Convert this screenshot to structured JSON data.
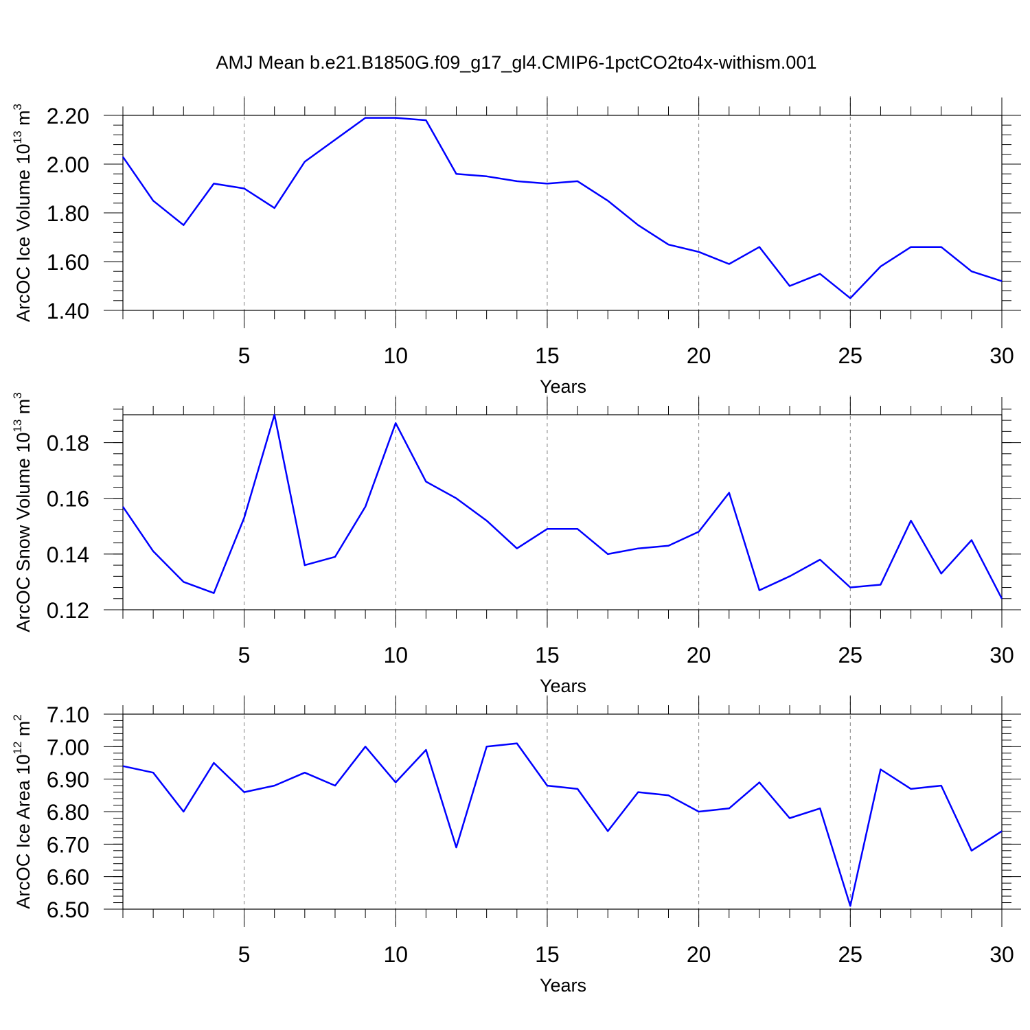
{
  "figure": {
    "title": "AMJ Mean b.e21.B1850G.f09_g17_gl4.CMIP6-1pctCO2to4x-withism.001"
  },
  "colors": {
    "line": "#0000ff",
    "axis": "#000000",
    "grid": "#808080"
  },
  "chart_data": [
    {
      "type": "line",
      "xlabel": "Years",
      "ylabel": {
        "text": "ArcOC Ice Volume 10",
        "exp": "13",
        "unit": " m",
        "unit_exp": "3"
      },
      "xlim": [
        1,
        30
      ],
      "ylim": [
        1.4,
        2.2
      ],
      "x_ticks": [
        5,
        10,
        15,
        20,
        25,
        30
      ],
      "y_ticks": [
        "1.40",
        "1.60",
        "1.80",
        "2.00",
        "2.20"
      ],
      "y_minor_step": 0.04,
      "x": [
        1,
        2,
        3,
        4,
        5,
        6,
        7,
        8,
        9,
        10,
        11,
        12,
        13,
        14,
        15,
        16,
        17,
        18,
        19,
        20,
        21,
        22,
        23,
        24,
        25,
        26,
        27,
        28,
        29,
        30
      ],
      "values": [
        2.03,
        1.85,
        1.75,
        1.92,
        1.9,
        1.82,
        2.01,
        2.1,
        2.19,
        2.19,
        2.18,
        1.96,
        1.95,
        1.93,
        1.92,
        1.93,
        1.85,
        1.75,
        1.67,
        1.64,
        1.59,
        1.66,
        1.5,
        1.55,
        1.45,
        1.58,
        1.66,
        1.66,
        1.56,
        1.52
      ],
      "grid_x": [
        5,
        10,
        15,
        20,
        25
      ]
    },
    {
      "type": "line",
      "xlabel": "Years",
      "ylabel": {
        "text": "ArcOC Snow Volume 10",
        "exp": "13",
        "unit": " m",
        "unit_exp": "3"
      },
      "xlim": [
        1,
        30
      ],
      "ylim": [
        0.12,
        0.19
      ],
      "x_ticks": [
        5,
        10,
        15,
        20,
        25,
        30
      ],
      "y_ticks": [
        "0.12",
        "0.14",
        "0.16",
        "0.18"
      ],
      "y_minor_step": 0.004,
      "x": [
        1,
        2,
        3,
        4,
        5,
        6,
        7,
        8,
        9,
        10,
        11,
        12,
        13,
        14,
        15,
        16,
        17,
        18,
        19,
        20,
        21,
        22,
        23,
        24,
        25,
        26,
        27,
        28,
        29,
        30
      ],
      "values": [
        0.157,
        0.141,
        0.13,
        0.126,
        0.153,
        0.19,
        0.136,
        0.139,
        0.157,
        0.187,
        0.166,
        0.16,
        0.152,
        0.142,
        0.149,
        0.149,
        0.14,
        0.142,
        0.143,
        0.148,
        0.162,
        0.127,
        0.132,
        0.138,
        0.128,
        0.129,
        0.152,
        0.133,
        0.145,
        0.124
      ],
      "grid_x": [
        5,
        10,
        15,
        20,
        25
      ]
    },
    {
      "type": "line",
      "xlabel": "Years",
      "ylabel": {
        "text": "ArcOC Ice Area 10",
        "exp": "12",
        "unit": " m",
        "unit_exp": "2"
      },
      "xlim": [
        1,
        30
      ],
      "ylim": [
        6.5,
        7.1
      ],
      "x_ticks": [
        5,
        10,
        15,
        20,
        25,
        30
      ],
      "y_ticks": [
        "6.50",
        "6.60",
        "6.70",
        "6.80",
        "6.90",
        "7.00",
        "7.10"
      ],
      "y_minor_step": 0.02,
      "x": [
        1,
        2,
        3,
        4,
        5,
        6,
        7,
        8,
        9,
        10,
        11,
        12,
        13,
        14,
        15,
        16,
        17,
        18,
        19,
        20,
        21,
        22,
        23,
        24,
        25,
        26,
        27,
        28,
        29,
        30
      ],
      "values": [
        6.94,
        6.92,
        6.8,
        6.95,
        6.86,
        6.88,
        6.92,
        6.88,
        7.0,
        6.89,
        6.99,
        6.69,
        7.0,
        7.01,
        6.88,
        6.87,
        6.74,
        6.86,
        6.85,
        6.8,
        6.81,
        6.89,
        6.78,
        6.81,
        6.51,
        6.93,
        6.87,
        6.88,
        6.68,
        6.74
      ],
      "grid_x": [
        5,
        10,
        15,
        20,
        25
      ]
    }
  ]
}
